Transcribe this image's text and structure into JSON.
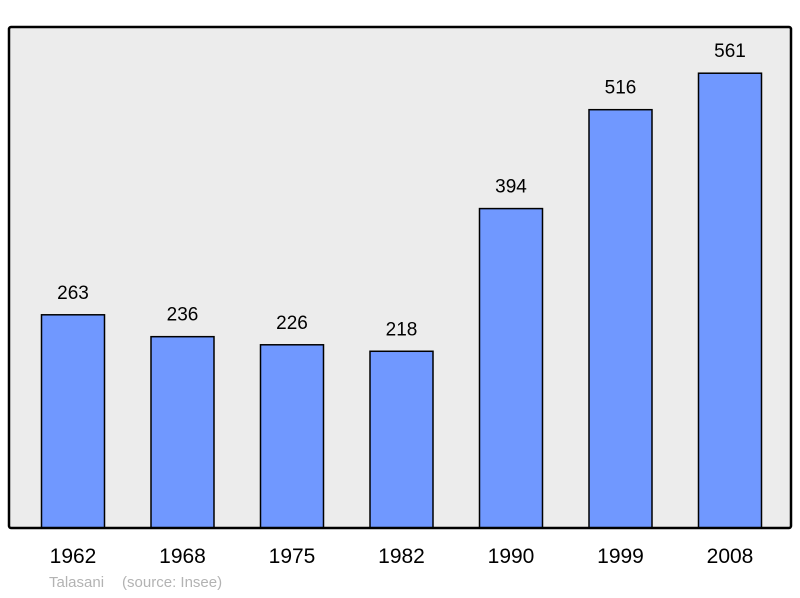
{
  "chart_data": {
    "type": "bar",
    "categories": [
      "1962",
      "1968",
      "1975",
      "1982",
      "1990",
      "1999",
      "2008"
    ],
    "values": [
      263,
      236,
      226,
      218,
      394,
      516,
      561
    ],
    "title": "",
    "xlabel": "",
    "ylabel": "",
    "ylim": [
      0,
      618
    ],
    "grid": false,
    "data_labels": true,
    "colors": {
      "bar": "#7098ff",
      "plot_background": "#ececec",
      "border": "#000000"
    }
  },
  "footer": {
    "place": "Talasani",
    "source": "(source: Insee)"
  }
}
